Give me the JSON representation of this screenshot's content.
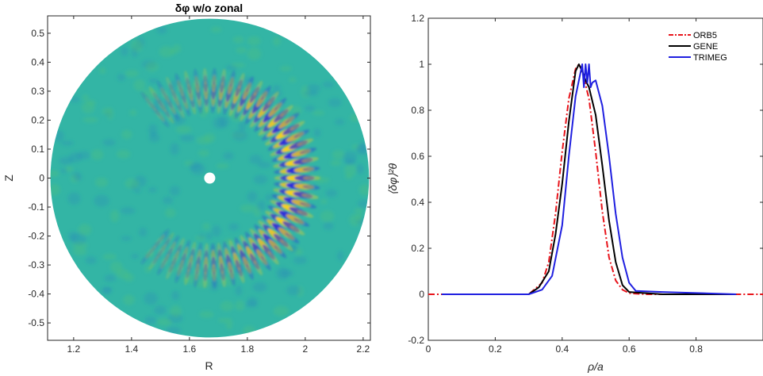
{
  "chart_data": [
    {
      "type": "heatmap",
      "title": "δφ w/o zonal",
      "xlabel": "R",
      "ylabel": "Z",
      "xlim": [
        1.11,
        2.225
      ],
      "ylim": [
        -0.56,
        0.56
      ],
      "xticks": [
        "1.2",
        "1.4",
        "1.6",
        "1.8",
        "2",
        "2.2"
      ],
      "yticks": [
        "-0.5",
        "-0.4",
        "-0.3",
        "-0.2",
        "-0.1",
        "0",
        "0.1",
        "0.2",
        "0.3",
        "0.4",
        "0.5"
      ],
      "domain": {
        "center_R": 1.67,
        "center_Z": 0.0,
        "outer_radius": 0.55,
        "inner_hole_radius": 0.012
      },
      "background_color": "#33b5a5",
      "colors": {
        "positive": "#f5d11a",
        "negative": "#2b2fd9"
      }
    },
    {
      "type": "line",
      "xlabel": "ρ/a",
      "ylabel": "⟨δφ⟩²θ",
      "xlim": [
        0,
        1
      ],
      "ylim": [
        -0.2,
        1.2
      ],
      "xticks": [
        "0",
        "0.2",
        "0.4",
        "0.6",
        "0.8"
      ],
      "yticks": [
        "-0.2",
        "0",
        "0.2",
        "0.4",
        "0.6",
        "0.8",
        "1",
        "1.2"
      ],
      "legend_position": "top-right",
      "series": [
        {
          "name": "ORB5",
          "color": "#e8141b",
          "style": "dashdot",
          "x": [
            0.0,
            0.3,
            0.34,
            0.36,
            0.38,
            0.4,
            0.42,
            0.44,
            0.45,
            0.46,
            0.48,
            0.5,
            0.52,
            0.54,
            0.56,
            0.58,
            0.6,
            0.65,
            0.7,
            1.0
          ],
          "y": [
            0.0,
            0.0,
            0.05,
            0.14,
            0.35,
            0.62,
            0.85,
            0.98,
            1.0,
            0.97,
            0.85,
            0.62,
            0.36,
            0.16,
            0.06,
            0.02,
            0.005,
            0.0,
            0.0,
            0.0
          ]
        },
        {
          "name": "GENE",
          "color": "#000000",
          "style": "solid",
          "x": [
            0.04,
            0.3,
            0.33,
            0.36,
            0.38,
            0.4,
            0.42,
            0.44,
            0.45,
            0.46,
            0.47,
            0.48,
            0.5,
            0.52,
            0.54,
            0.56,
            0.58,
            0.6,
            0.7,
            0.92
          ],
          "y": [
            0.0,
            0.0,
            0.03,
            0.1,
            0.26,
            0.48,
            0.75,
            0.97,
            1.0,
            0.97,
            0.93,
            0.9,
            0.78,
            0.56,
            0.32,
            0.14,
            0.04,
            0.01,
            0.0,
            0.0
          ]
        },
        {
          "name": "TRIMEG",
          "color": "#1f1fe0",
          "style": "solid",
          "x": [
            0.04,
            0.3,
            0.34,
            0.37,
            0.4,
            0.42,
            0.44,
            0.45,
            0.46,
            0.465,
            0.47,
            0.475,
            0.48,
            0.485,
            0.49,
            0.5,
            0.52,
            0.54,
            0.56,
            0.58,
            0.6,
            0.62,
            0.7,
            0.92
          ],
          "y": [
            0.0,
            0.0,
            0.02,
            0.08,
            0.3,
            0.6,
            0.86,
            0.93,
            1.0,
            0.9,
            1.0,
            0.92,
            1.0,
            0.9,
            0.92,
            0.93,
            0.82,
            0.6,
            0.35,
            0.16,
            0.05,
            0.015,
            0.01,
            0.0
          ]
        }
      ]
    }
  ]
}
